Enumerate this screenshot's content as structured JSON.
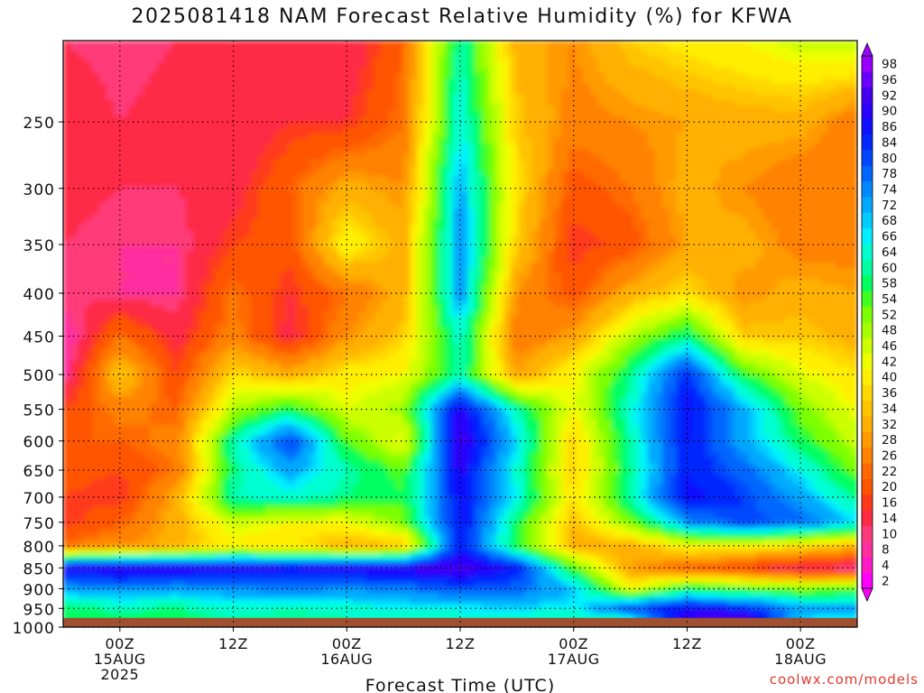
{
  "chart_data": {
    "type": "heatmap",
    "title": "2025081418 NAM Forecast Relative Humidity (%) for KFWA",
    "xlabel": "Forecast Time (UTC)",
    "ylabel": "",
    "x_ticks": [
      {
        "hour": 0,
        "lines": [
          "00Z",
          "15AUG",
          "2025"
        ]
      },
      {
        "hour": 12,
        "lines": [
          "12Z"
        ]
      },
      {
        "hour": 24,
        "lines": [
          "00Z",
          "16AUG"
        ]
      },
      {
        "hour": 36,
        "lines": [
          "12Z"
        ]
      },
      {
        "hour": 48,
        "lines": [
          "00Z",
          "17AUG"
        ]
      },
      {
        "hour": 60,
        "lines": [
          "12Z"
        ]
      },
      {
        "hour": 72,
        "lines": [
          "00Z",
          "18AUG"
        ]
      }
    ],
    "xlim": [
      -6,
      78
    ],
    "y_ticks": [
      "250",
      "300",
      "350",
      "400",
      "450",
      "500",
      "550",
      "600",
      "650",
      "700",
      "750",
      "800",
      "850",
      "900",
      "950",
      "1000"
    ],
    "y_scale": "log-pressure",
    "ylim": [
      200,
      1000
    ],
    "grid": true,
    "surface_pressure": 975,
    "colorbar": {
      "levels": [
        2,
        4,
        8,
        10,
        14,
        16,
        20,
        22,
        26,
        28,
        32,
        34,
        36,
        40,
        42,
        46,
        48,
        52,
        54,
        58,
        60,
        64,
        66,
        68,
        72,
        74,
        78,
        80,
        84,
        86,
        90,
        92,
        96,
        98
      ],
      "colors": [
        "#ff00ff",
        "#ff1ac6",
        "#ff2fa0",
        "#ff3a7a",
        "#ff2a44",
        "#ff3a1a",
        "#ff5500",
        "#ff6a00",
        "#ff8200",
        "#ff9a00",
        "#ffb000",
        "#ffc400",
        "#ffd800",
        "#ffee00",
        "#eeff00",
        "#ccff00",
        "#a6ff00",
        "#7cff00",
        "#40ff20",
        "#00ff60",
        "#00ffa0",
        "#00ffd0",
        "#00f0ff",
        "#00ccff",
        "#00a8ff",
        "#0088ff",
        "#0066ff",
        "#0046ff",
        "#0028ff",
        "#1010ff",
        "#2a00ff",
        "#4400ee",
        "#6a00ff",
        "#9a00ff"
      ]
    },
    "rh_samples": {
      "hours": [
        -6,
        0,
        6,
        12,
        18,
        24,
        30,
        36,
        42,
        48,
        54,
        60,
        66,
        72,
        78
      ],
      "pressures": [
        200,
        250,
        300,
        350,
        400,
        450,
        500,
        550,
        600,
        650,
        700,
        750,
        800,
        850,
        900,
        950,
        975
      ],
      "values": [
        [
          10,
          8,
          10,
          12,
          14,
          10,
          20,
          60,
          30,
          26,
          34,
          38,
          40,
          44,
          46
        ],
        [
          14,
          10,
          12,
          10,
          14,
          14,
          22,
          64,
          34,
          24,
          26,
          28,
          30,
          30,
          22
        ],
        [
          12,
          10,
          10,
          12,
          20,
          30,
          26,
          70,
          36,
          18,
          22,
          30,
          26,
          22,
          22
        ],
        [
          10,
          8,
          8,
          16,
          18,
          40,
          30,
          72,
          34,
          14,
          18,
          28,
          30,
          24,
          24
        ],
        [
          10,
          8,
          8,
          22,
          14,
          22,
          30,
          72,
          26,
          18,
          30,
          36,
          26,
          30,
          28
        ],
        [
          4,
          22,
          12,
          24,
          12,
          26,
          34,
          62,
          22,
          28,
          46,
          58,
          34,
          34,
          30
        ],
        [
          6,
          34,
          16,
          36,
          30,
          38,
          40,
          60,
          28,
          40,
          58,
          82,
          54,
          42,
          36
        ],
        [
          16,
          24,
          20,
          46,
          56,
          42,
          48,
          88,
          60,
          40,
          62,
          86,
          70,
          50,
          40
        ],
        [
          20,
          20,
          24,
          60,
          80,
          52,
          40,
          92,
          66,
          34,
          60,
          84,
          70,
          56,
          44
        ],
        [
          18,
          16,
          22,
          58,
          70,
          60,
          52,
          88,
          62,
          34,
          58,
          84,
          76,
          64,
          50
        ],
        [
          16,
          14,
          30,
          60,
          62,
          58,
          54,
          86,
          64,
          36,
          60,
          86,
          80,
          70,
          58
        ],
        [
          14,
          20,
          30,
          44,
          40,
          40,
          50,
          86,
          56,
          32,
          50,
          72,
          80,
          76,
          66
        ],
        [
          22,
          26,
          30,
          38,
          36,
          30,
          32,
          84,
          54,
          30,
          30,
          40,
          40,
          36,
          32
        ],
        [
          88,
          90,
          90,
          88,
          86,
          88,
          90,
          92,
          84,
          52,
          28,
          20,
          16,
          10,
          8
        ],
        [
          70,
          72,
          70,
          72,
          74,
          72,
          74,
          78,
          76,
          68,
          40,
          56,
          52,
          50,
          52
        ],
        [
          56,
          60,
          58,
          62,
          60,
          62,
          64,
          64,
          66,
          64,
          80,
          86,
          82,
          72,
          70
        ],
        [
          54,
          56,
          56,
          60,
          58,
          60,
          62,
          64,
          62,
          60,
          64,
          90,
          92,
          66,
          64
        ]
      ]
    }
  },
  "watermark": "coolwx.com/models"
}
